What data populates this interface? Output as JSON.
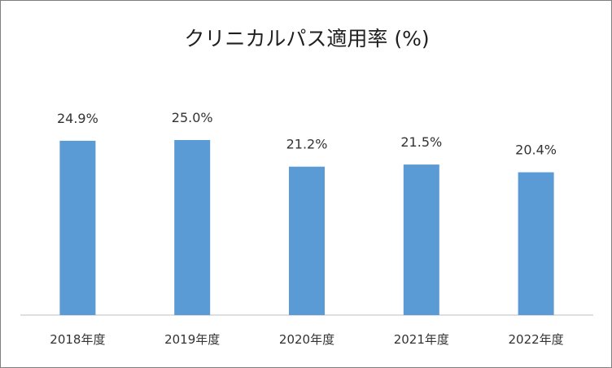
{
  "chart_data": {
    "type": "bar",
    "title": "クリニカルパス適用率 (%)",
    "categories": [
      "2018年度",
      "2019年度",
      "2020年度",
      "2021年度",
      "2022年度"
    ],
    "values": [
      24.9,
      25.0,
      21.2,
      21.5,
      20.4
    ],
    "data_labels": [
      "24.9%",
      "25.0%",
      "21.2%",
      "21.5%",
      "20.4%"
    ],
    "xlabel": "",
    "ylabel": "",
    "ylim": [
      0,
      30
    ],
    "grid": false,
    "legend": "none",
    "bar_color": "#5b9bd5"
  }
}
